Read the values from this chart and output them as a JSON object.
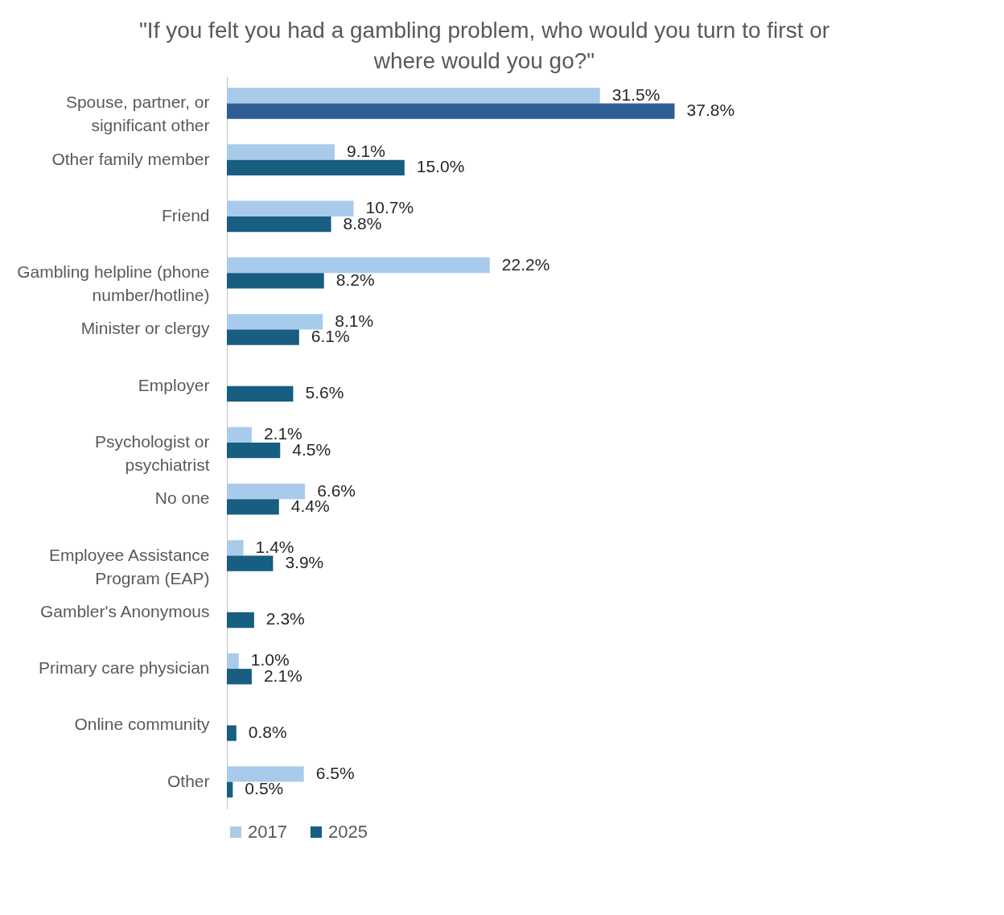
{
  "chart_data": {
    "type": "bar",
    "orientation": "horizontal",
    "title": "\"If you felt you had a gambling problem, who would you turn to first or\nwhere would you go?\"",
    "categories": [
      "Spouse, partner, or\nsignificant other",
      "Other family member",
      "Friend",
      "Gambling helpline (phone\nnumber/hotline)",
      "Minister or clergy",
      "Employer",
      "Psychologist or\npsychiatrist",
      "No one",
      "Employee Assistance\nProgram (EAP)",
      "Gambler's Anonymous",
      "Primary care physician",
      "Online community",
      "Other"
    ],
    "series": [
      {
        "name": "2017",
        "color": "#a9cbeb",
        "values": [
          31.5,
          9.1,
          10.7,
          22.2,
          8.1,
          null,
          2.1,
          6.6,
          1.4,
          null,
          1.0,
          null,
          6.5
        ],
        "value_labels": [
          "31.5%",
          "9.1%",
          "10.7%",
          "22.2%",
          "8.1%",
          null,
          "2.1%",
          "6.6%",
          "1.4%",
          null,
          "1.0%",
          null,
          "6.5%"
        ]
      },
      {
        "name": "2025",
        "color": "#175e80",
        "colors": [
          "#2e5e93",
          "#175e80",
          "#175e80",
          "#175e80",
          "#175e80",
          "#175e80",
          "#175e80",
          "#175e80",
          "#175e80",
          "#175e80",
          "#175e80",
          "#175e80",
          "#175e80"
        ],
        "values": [
          37.8,
          15.0,
          8.8,
          8.2,
          6.1,
          5.6,
          4.5,
          4.4,
          3.9,
          2.3,
          2.1,
          0.8,
          0.5
        ],
        "value_labels": [
          "37.8%",
          "15.0%",
          "8.8%",
          "8.2%",
          "6.1%",
          "5.6%",
          "4.5%",
          "4.4%",
          "3.9%",
          "2.3%",
          "2.1%",
          "0.8%",
          "0.5%"
        ]
      }
    ],
    "legend": "bottom",
    "grid": false
  }
}
